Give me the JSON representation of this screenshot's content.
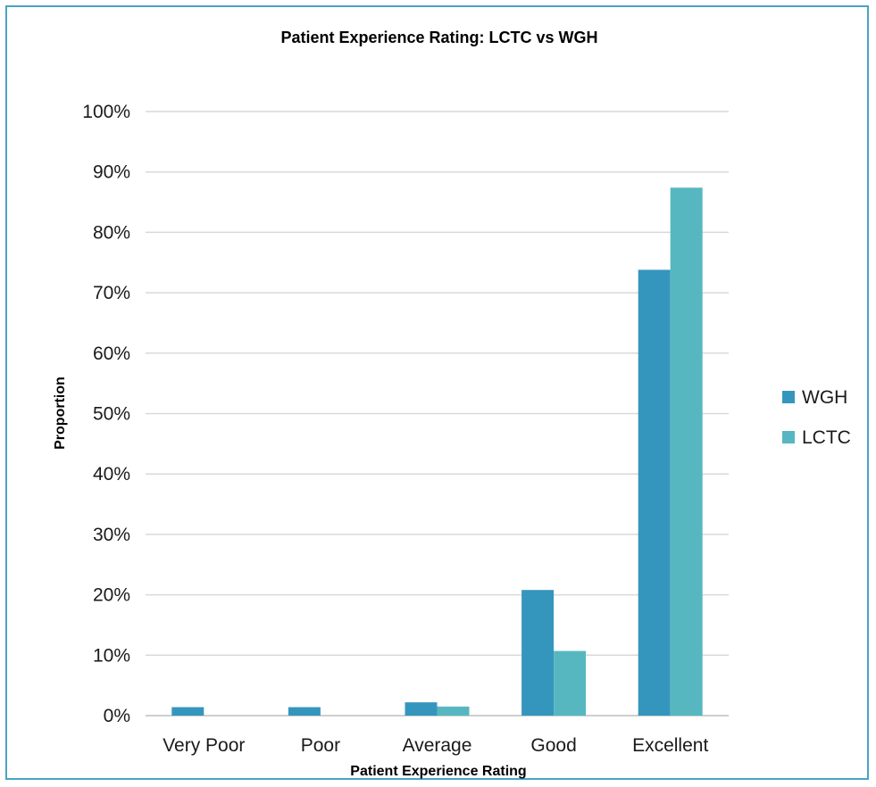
{
  "chart_data": {
    "type": "bar",
    "title": "Patient Experience Rating: LCTC vs WGH",
    "xlabel": "Patient Experience Rating",
    "ylabel": "Proportion",
    "ylim": [
      0,
      100
    ],
    "yticks": [
      "0%",
      "10%",
      "20%",
      "30%",
      "40%",
      "50%",
      "60%",
      "70%",
      "80%",
      "90%",
      "100%"
    ],
    "categories": [
      "Very Poor",
      "Poor",
      "Average",
      "Good",
      "Excellent"
    ],
    "series": [
      {
        "name": "WGH",
        "color": "#3596bd",
        "values": [
          1.4,
          1.4,
          2.2,
          20.8,
          73.8
        ]
      },
      {
        "name": "LCTC",
        "color": "#57b7c0",
        "values": [
          0,
          0,
          1.5,
          10.7,
          87.4
        ]
      }
    ],
    "grid": true,
    "legend_position": "right"
  }
}
